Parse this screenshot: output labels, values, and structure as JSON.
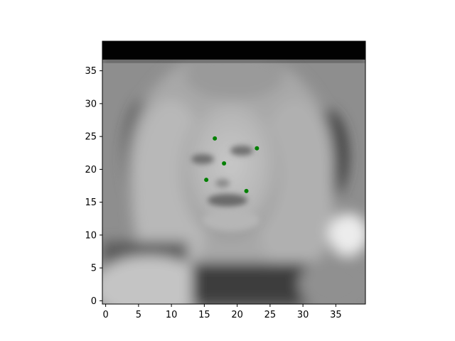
{
  "chart_data": {
    "type": "scatter",
    "title": "",
    "xlabel": "",
    "ylabel": "",
    "xlim": [
      -0.5,
      39.5
    ],
    "ylim": [
      39.5,
      -0.5
    ],
    "y_inverted": true,
    "grid": false,
    "legend": "none",
    "background_image": "grayscale-blurred-face-image",
    "x_ticks": [
      0,
      5,
      10,
      15,
      20,
      25,
      30,
      35
    ],
    "y_ticks": [
      0,
      5,
      10,
      15,
      20,
      25,
      30,
      35
    ],
    "series": [
      {
        "color": "#008000",
        "points": [
          {
            "x": 15.3,
            "y": 18.4
          },
          {
            "x": 21.4,
            "y": 16.7
          },
          {
            "x": 18.0,
            "y": 20.9
          },
          {
            "x": 16.6,
            "y": 24.7
          },
          {
            "x": 23.0,
            "y": 23.2
          }
        ]
      }
    ]
  }
}
